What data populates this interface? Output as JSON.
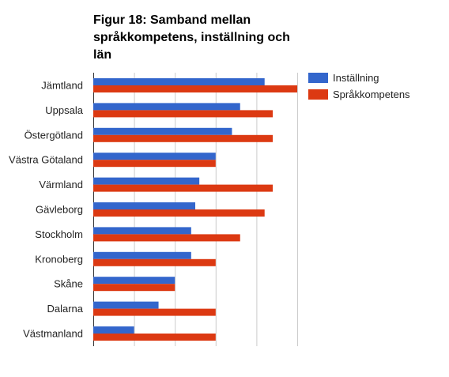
{
  "chart_data": {
    "type": "bar",
    "orientation": "horizontal",
    "title_lines": [
      "Figur 18: Samband mellan",
      "språkkompetens, inställning och",
      "län"
    ],
    "categories": [
      "Jämtland",
      "Uppsala",
      "Östergötland",
      "Västra Götaland",
      "Värmland",
      "Gävleborg",
      "Stockholm",
      "Kronoberg",
      "Skåne",
      "Dalarna",
      "Västmanland"
    ],
    "series": [
      {
        "name": "Inställning",
        "color": "#3366cc",
        "values": [
          4.2,
          3.6,
          3.4,
          3.0,
          2.6,
          2.5,
          2.4,
          2.4,
          2.0,
          1.6,
          1.0
        ]
      },
      {
        "name": "Språkkompetens",
        "color": "#dc3912",
        "values": [
          5.0,
          4.4,
          4.4,
          3.0,
          4.4,
          4.2,
          3.6,
          3.0,
          2.0,
          3.0,
          3.0
        ]
      }
    ],
    "xlim": [
      0,
      5
    ],
    "grid": true,
    "legend_position": "right"
  }
}
